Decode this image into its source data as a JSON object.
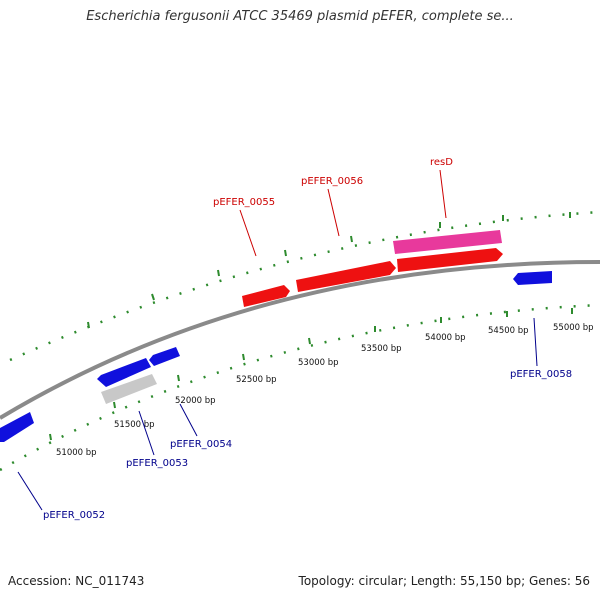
{
  "title": "Escherichia fergusonii ATCC 35469 plasmid pEFER, complete se...",
  "footer": {
    "accession": "Accession: NC_011743",
    "summary": "Topology: circular; Length: 55,150 bp; Genes: 56"
  },
  "colors": {
    "backbone": "#8a8a8a",
    "tick": "#2e8b2e",
    "forward_gene": "#ee1111",
    "forward_gene_label": "#cc0000",
    "reverse_gene": "#1010dd",
    "reverse_gene_label": "#00008b",
    "pink_gene": "#e8399c",
    "grey_gene": "#c8c8c8"
  },
  "bp_labels": [
    "51000 bp",
    "51500 bp",
    "52000 bp",
    "52500 bp",
    "53000 bp",
    "53500 bp",
    "54000 bp",
    "54500 bp",
    "55000 bp"
  ],
  "genes": [
    {
      "label": "pEFER_0052",
      "strand": "reverse"
    },
    {
      "label": "pEFER_0053",
      "strand": "reverse"
    },
    {
      "label": "pEFER_0054",
      "strand": "reverse"
    },
    {
      "label": "pEFER_0055",
      "strand": "forward"
    },
    {
      "label": "pEFER_0056",
      "strand": "forward"
    },
    {
      "label": "resD",
      "strand": "forward"
    },
    {
      "label": "pEFER_0058",
      "strand": "reverse"
    }
  ]
}
